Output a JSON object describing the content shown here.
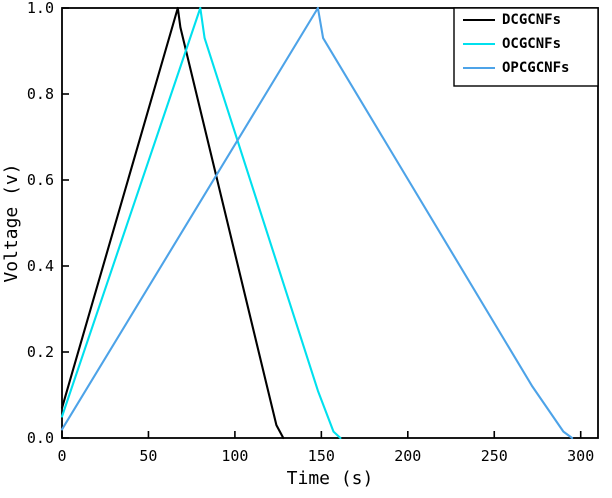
{
  "chart_data": {
    "type": "line",
    "title": "",
    "xlabel": "Time (s)",
    "ylabel": "Voltage (v)",
    "xlim": [
      0,
      310
    ],
    "ylim": [
      0.0,
      1.0
    ],
    "xticks": [
      0,
      50,
      100,
      150,
      200,
      250,
      300
    ],
    "xtick_labels": [
      "0",
      "50",
      "100",
      "150",
      "200",
      "250",
      "300"
    ],
    "yticks": [
      0.0,
      0.2,
      0.4,
      0.6,
      0.8,
      1.0
    ],
    "ytick_labels": [
      "0.0",
      "0.2",
      "0.4",
      "0.6",
      "0.8",
      "1.0"
    ],
    "grid": false,
    "legend_position": "top-right",
    "frame_color": "#000000",
    "background_color": "#ffffff",
    "series": [
      {
        "name": "DCGCNFs",
        "color": "#000000",
        "points": [
          [
            0,
            0.07
          ],
          [
            67,
            1.0
          ],
          [
            68.5,
            0.955
          ],
          [
            118,
            0.13
          ],
          [
            124,
            0.03
          ],
          [
            128,
            0.0
          ]
        ]
      },
      {
        "name": "OCGCNFs",
        "color": "#00E0EE",
        "points": [
          [
            0,
            0.05
          ],
          [
            80,
            1.0
          ],
          [
            82.5,
            0.93
          ],
          [
            148,
            0.11
          ],
          [
            157,
            0.015
          ],
          [
            161,
            0.0
          ]
        ]
      },
      {
        "name": "OPCGCNFs",
        "color": "#4DA3E8",
        "points": [
          [
            0,
            0.02
          ],
          [
            148,
            1.0
          ],
          [
            151,
            0.93
          ],
          [
            272,
            0.12
          ],
          [
            290,
            0.015
          ],
          [
            295,
            0.0
          ]
        ]
      }
    ]
  }
}
